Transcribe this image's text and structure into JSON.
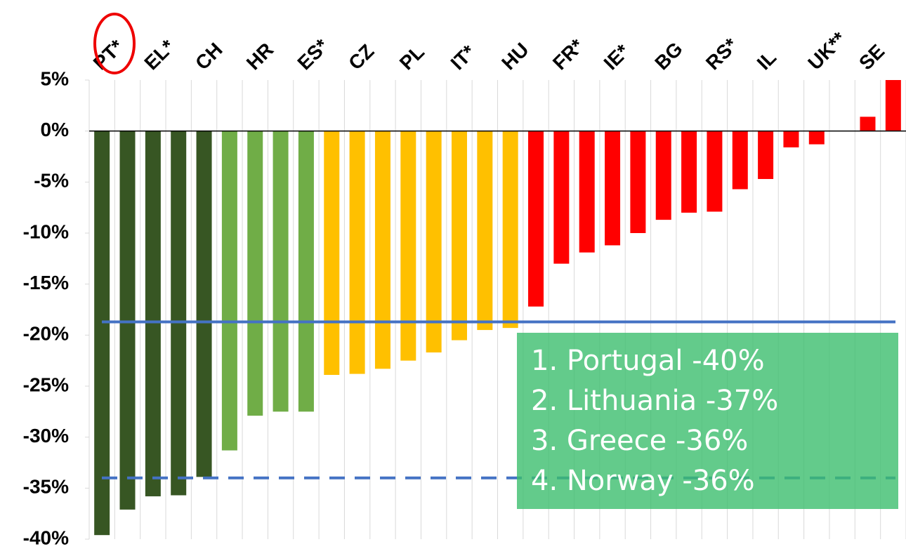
{
  "chart_data": {
    "type": "bar",
    "categories": [
      "PT*",
      null,
      "EL*",
      null,
      "CH",
      null,
      "HR",
      null,
      "ES*",
      null,
      "CZ",
      null,
      "PL",
      null,
      "IT*",
      null,
      "HU",
      null,
      "FR*",
      null,
      "IE*",
      null,
      "BG",
      null,
      "RS*",
      null,
      "IL",
      null,
      "UK**",
      null,
      "SE",
      null
    ],
    "values": [
      -39.6,
      -37.1,
      -35.8,
      -35.7,
      -33.9,
      -31.3,
      -27.9,
      -27.5,
      -27.5,
      -23.9,
      -23.8,
      -23.3,
      -22.5,
      -21.7,
      -20.5,
      -19.5,
      -19.3,
      -17.2,
      -13.0,
      -11.9,
      -11.2,
      -10.0,
      -8.7,
      -8.0,
      -7.9,
      -5.7,
      -4.7,
      -1.6,
      -1.3,
      0,
      1.4,
      5
    ],
    "colors": [
      "#375623",
      "#375623",
      "#375623",
      "#375623",
      "#375623",
      "#70ad47",
      "#70ad47",
      "#70ad47",
      "#70ad47",
      "#ffc000",
      "#ffc000",
      "#ffc000",
      "#ffc000",
      "#ffc000",
      "#ffc000",
      "#ffc000",
      "#ffc000",
      "#ff0000",
      "#ff0000",
      "#ff0000",
      "#ff0000",
      "#ff0000",
      "#ff0000",
      "#ff0000",
      "#ff0000",
      "#ff0000",
      "#ff0000",
      "#ff0000",
      "#ff0000",
      "#ff0000",
      "#ff0000",
      "#ff0000"
    ],
    "ylim": [
      -40,
      5
    ],
    "yticks": [
      {
        "value": 5,
        "label": "5%"
      },
      {
        "value": 0,
        "label": "0%"
      },
      {
        "value": -5,
        "label": "-5%"
      },
      {
        "value": -10,
        "label": "-10%"
      },
      {
        "value": -15,
        "label": "-15%"
      },
      {
        "value": -20,
        "label": "-20%"
      },
      {
        "value": -25,
        "label": "-25%"
      },
      {
        "value": -30,
        "label": "-30%"
      },
      {
        "value": -35,
        "label": "-35%"
      },
      {
        "value": -40,
        "label": "-40%"
      }
    ],
    "reference_lines": [
      {
        "value": -18.7,
        "style": "solid",
        "color": "#4472c4"
      },
      {
        "value": -34,
        "style": "dashed",
        "color": "#4472c4"
      }
    ],
    "annotation": [
      "1. Portugal -40%",
      "2. Lithuania -37%",
      "3. Greece -36%",
      "4. Norway -36%"
    ],
    "grid": true
  }
}
